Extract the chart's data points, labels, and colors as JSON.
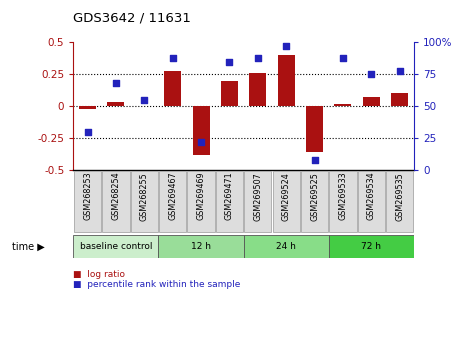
{
  "title": "GDS3642 / 11631",
  "categories": [
    "GSM268253",
    "GSM268254",
    "GSM268255",
    "GSM269467",
    "GSM269469",
    "GSM269471",
    "GSM269507",
    "GSM269524",
    "GSM269525",
    "GSM269533",
    "GSM269534",
    "GSM269535"
  ],
  "log_ratio": [
    -0.02,
    0.03,
    0.0,
    0.28,
    -0.38,
    0.2,
    0.26,
    0.4,
    -0.36,
    0.02,
    0.07,
    0.1
  ],
  "percentile_rank": [
    30,
    68,
    55,
    88,
    22,
    85,
    88,
    97,
    8,
    88,
    75,
    78
  ],
  "bar_color": "#aa1111",
  "dot_color": "#2222bb",
  "ylim_left": [
    -0.5,
    0.5
  ],
  "ylim_right": [
    0,
    100
  ],
  "yticks_left": [
    -0.5,
    -0.25,
    0.0,
    0.25,
    0.5
  ],
  "yticks_right": [
    0,
    25,
    50,
    75,
    100
  ],
  "dotted_lines": [
    -0.25,
    0.0,
    0.25
  ],
  "legend_red": "log ratio",
  "legend_blue": "percentile rank within the sample",
  "group_info": [
    {
      "label": "baseline control",
      "start": 0,
      "end": 3,
      "color": "#cceecc"
    },
    {
      "label": "12 h",
      "start": 3,
      "end": 6,
      "color": "#99dd99"
    },
    {
      "label": "24 h",
      "start": 6,
      "end": 9,
      "color": "#88dd88"
    },
    {
      "label": "72 h",
      "start": 9,
      "end": 12,
      "color": "#44cc44"
    }
  ],
  "background_color": "#ffffff"
}
